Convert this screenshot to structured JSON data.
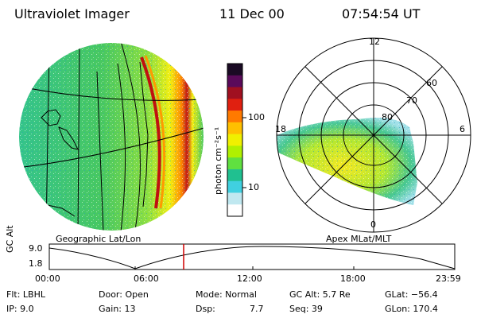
{
  "header": {
    "instrument": "Ultraviolet Imager",
    "date": "11 Dec 00",
    "time": "07:54:54 UT"
  },
  "geo_panel": {
    "label": "Geographic Lat/Lon"
  },
  "polar_panel": {
    "label": "Apex MLat/MLT",
    "mlt_labels": {
      "top": "12",
      "left": "18",
      "right": "6",
      "bottom": "0"
    },
    "lat_labels": [
      "60",
      "70",
      "80"
    ]
  },
  "colorbar": {
    "unit_label": "photon cm⁻²s⁻¹",
    "ticks": [
      "100",
      "10"
    ],
    "colors": [
      "#1a0a24",
      "#5a0a5a",
      "#a01020",
      "#e02010",
      "#ff7a00",
      "#ffc000",
      "#f0f000",
      "#b0f000",
      "#60e040",
      "#20c090",
      "#40d0e0",
      "#c0e8f0",
      "#ffffff"
    ]
  },
  "altitude_plot": {
    "ylabel": "GC Alt",
    "yticks": [
      "9.0",
      "1.8"
    ],
    "xticks": [
      "00:00",
      "06:00",
      "12:00",
      "18:00",
      "23:59"
    ],
    "cursor_color": "#d00000"
  },
  "info": {
    "row1": {
      "filter": "Flt: LBHL",
      "door": "Door: Open",
      "mode": "Mode: Normal",
      "gc_alt": "GC Alt: 5.7 Re",
      "glat": "GLat: −56.4"
    },
    "row2": {
      "ip": "IP: 9.0",
      "gain": "Gain: 13",
      "dsp_label": "Dsp:",
      "dsp_value": "7.7",
      "seq": "Seq: 39",
      "glon": "GLon: 170.4"
    }
  }
}
